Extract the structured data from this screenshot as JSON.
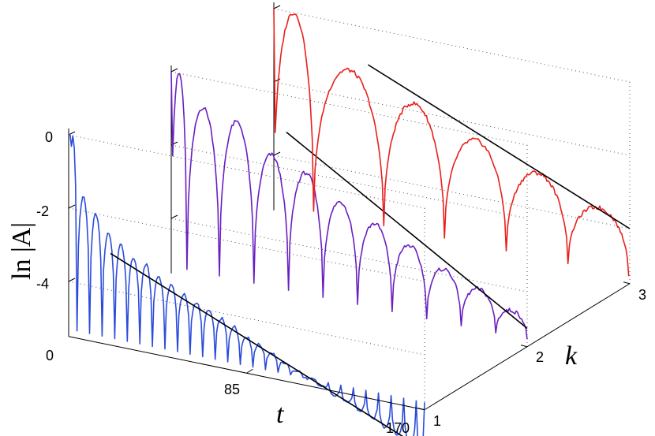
{
  "chart_data": {
    "type": "line",
    "title": "",
    "ylabel": "ln |A|",
    "xlabel": "t",
    "zlabel": "k",
    "xlim": [
      0,
      170
    ],
    "ylim": [
      -5.5,
      0
    ],
    "x_ticks": [
      "0",
      "85",
      "170"
    ],
    "y_ticks": [
      "0",
      "-2",
      "-4"
    ],
    "k_ticks": [
      "1",
      "2",
      "3"
    ],
    "grid": false,
    "series": [
      {
        "k": 1,
        "color": "#2b4cdb",
        "period": 6,
        "envelope_start": [
          0,
          0
        ],
        "envelope_line": [
          [
            20,
            -3.0
          ],
          [
            170,
            -6.6
          ]
        ],
        "lobe_peaks": [
          [
            1,
            0.0
          ],
          [
            7,
            -1.6
          ],
          [
            13,
            -2.0
          ],
          [
            19,
            -2.45
          ],
          [
            25,
            -2.7
          ],
          [
            31,
            -3.0
          ],
          [
            37,
            -3.1
          ],
          [
            43,
            -3.35
          ],
          [
            49,
            -3.5
          ],
          [
            55,
            -3.7
          ],
          [
            61,
            -3.85
          ],
          [
            67,
            -4.0
          ],
          [
            73,
            -4.15
          ],
          [
            79,
            -4.3
          ],
          [
            85,
            -4.5
          ],
          [
            91,
            -4.65
          ],
          [
            97,
            -4.8
          ],
          [
            103,
            -5.0
          ],
          [
            109,
            -5.15
          ],
          [
            115,
            -5.3
          ],
          [
            121,
            -5.45
          ],
          [
            127,
            -5.6
          ],
          [
            133,
            -5.75
          ],
          [
            139,
            -5.9
          ],
          [
            145,
            -6.05
          ],
          [
            151,
            -6.2
          ],
          [
            157,
            -6.35
          ],
          [
            163,
            -6.5
          ],
          [
            169,
            -6.6
          ]
        ]
      },
      {
        "k": 2,
        "color": "#6a1fc0",
        "period": 16.5,
        "envelope_line": [
          [
            55,
            -1.0
          ],
          [
            170,
            -5.0
          ]
        ],
        "lobe_peaks": [
          [
            0,
            0.0
          ],
          [
            15,
            -0.8
          ],
          [
            31,
            -1.0
          ],
          [
            48,
            -1.7
          ],
          [
            64,
            -2.0
          ],
          [
            81,
            -2.6
          ],
          [
            97,
            -3.0
          ],
          [
            114,
            -3.4
          ],
          [
            130,
            -3.85
          ],
          [
            147,
            -4.2
          ],
          [
            163,
            -4.6
          ]
        ]
      },
      {
        "k": 3,
        "color": "#e8201c",
        "period": 29,
        "envelope_line": [
          [
            45,
            -1.0
          ],
          [
            170,
            -4.0
          ]
        ],
        "lobe_peaks": [
          [
            0,
            0.0
          ],
          [
            38,
            -1.25
          ],
          [
            67,
            -1.8
          ],
          [
            96,
            -2.45
          ],
          [
            126,
            -3.0
          ],
          [
            155,
            -3.6
          ]
        ]
      }
    ]
  }
}
